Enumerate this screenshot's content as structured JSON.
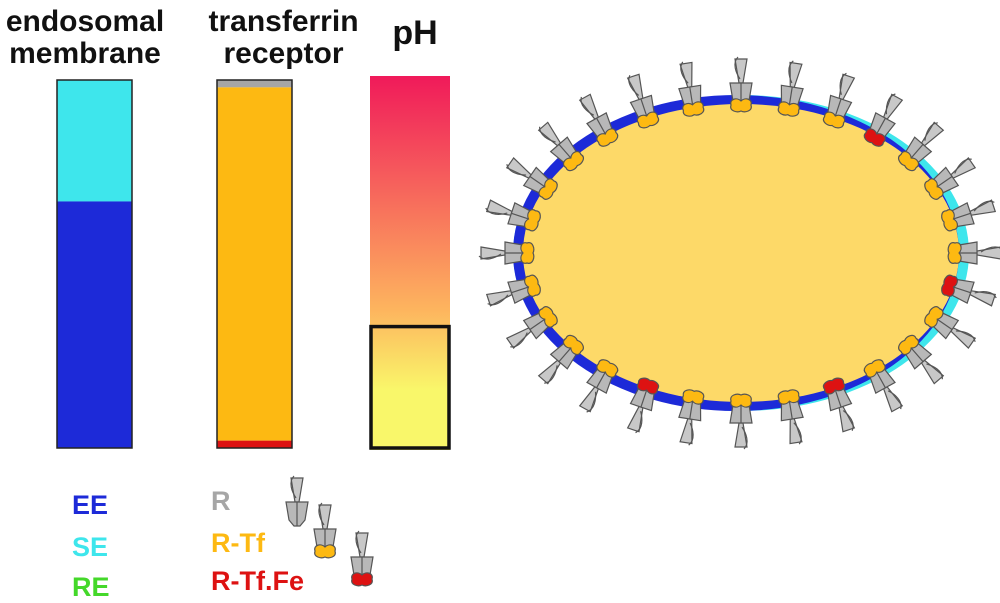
{
  "titles": {
    "endosomal_membrane": "endosomal membrane",
    "transferrin_receptor": "transferrin receptor",
    "ph": "pH"
  },
  "colors": {
    "EE": "#1d2ad8",
    "SE": "#3ee6ec",
    "RE": "#44d82a",
    "R": "#a6a6a6",
    "R_Tf": "#fdb912",
    "R_Tf_Fe": "#dd1212",
    "lumen": "#fdd968",
    "ph_top": "#f01a5a",
    "ph_mid": "#fdb35e",
    "ph_bottom": "#f9f76a"
  },
  "membrane_legend": [
    {
      "key": "EE",
      "label": "EE"
    },
    {
      "key": "SE",
      "label": "SE"
    },
    {
      "key": "RE",
      "label": "RE"
    }
  ],
  "receptor_legend": [
    {
      "key": "R",
      "label": "R",
      "icon": "receptor-icon"
    },
    {
      "key": "R_Tf",
      "label": "R-Tf",
      "icon": "receptor-transferrin-icon"
    },
    {
      "key": "R_Tf_Fe",
      "label": "R-Tf.Fe",
      "icon": "receptor-transferrin-iron-icon"
    }
  ],
  "bars": {
    "membrane_composition": {
      "SE": 0.33,
      "EE": 0.67
    },
    "receptor_composition": {
      "R": 0.02,
      "R_Tf": 0.96,
      "R_Tf_Fe": 0.02
    },
    "ph_selected_fraction": 0.33
  },
  "endosome": {
    "receptor_states": [
      "R_Tf",
      "R_Tf",
      "R_Tf",
      "R_Tf_Fe",
      "R_Tf",
      "R_Tf",
      "R_Tf",
      "R_Tf",
      "R_Tf_Fe",
      "R_Tf",
      "R_Tf",
      "R_Tf",
      "R_Tf_Fe",
      "R_Tf",
      "R_Tf",
      "R_Tf",
      "R_Tf_Fe",
      "R_Tf",
      "R_Tf",
      "R_Tf",
      "R_Tf",
      "R_Tf",
      "R_Tf",
      "R_Tf",
      "R_Tf",
      "R_Tf",
      "R_Tf",
      "R_Tf"
    ]
  }
}
